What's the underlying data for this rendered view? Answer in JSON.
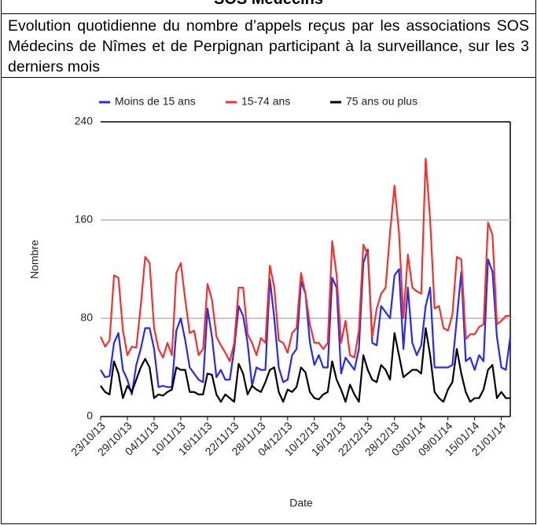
{
  "page_heading": "SOS Médecins",
  "chart_data": {
    "type": "line",
    "title": "Evolution quotidienne du nombre d’appels reçus par les associations SOS Médecins de Nîmes et de Perpignan participant à la surveillance, sur les 3 derniers mois",
    "xlabel": "Date",
    "ylabel": "Nombre",
    "categories": [
      "23/10/13",
      null,
      null,
      null,
      null,
      null,
      "29/10/13",
      null,
      null,
      null,
      null,
      null,
      "04/11/13",
      null,
      null,
      null,
      null,
      null,
      "10/11/13",
      null,
      null,
      null,
      null,
      null,
      "16/11/13",
      null,
      null,
      null,
      null,
      null,
      "22/11/13",
      null,
      null,
      null,
      null,
      null,
      "28/11/13",
      null,
      null,
      null,
      null,
      null,
      "04/12/13",
      null,
      null,
      null,
      null,
      null,
      "10/12/13",
      null,
      null,
      null,
      null,
      null,
      "16/12/13",
      null,
      null,
      null,
      null,
      null,
      "22/12/13",
      null,
      null,
      null,
      null,
      null,
      "28/12/13",
      null,
      null,
      null,
      null,
      null,
      "03/01/14",
      null,
      null,
      null,
      null,
      null,
      "09/01/14",
      null,
      null,
      null,
      null,
      null,
      "15/01/14",
      null,
      null,
      null,
      null,
      null,
      "21/01/14",
      null,
      null
    ],
    "series": [
      {
        "name": "Moins de 15 ans",
        "color": "#2a2ae8",
        "values": [
          38,
          32,
          33,
          60,
          68,
          38,
          30,
          18,
          42,
          55,
          72,
          72,
          55,
          24,
          25,
          24,
          24,
          70,
          80,
          62,
          40,
          35,
          30,
          28,
          88,
          65,
          32,
          38,
          30,
          30,
          55,
          90,
          82,
          60,
          25,
          40,
          38,
          38,
          112,
          80,
          40,
          28,
          30,
          50,
          55,
          110,
          100,
          60,
          42,
          50,
          40,
          40,
          113,
          105,
          35,
          48,
          43,
          38,
          55,
          125,
          136,
          60,
          58,
          90,
          85,
          80,
          115,
          120,
          55,
          105,
          60,
          50,
          58,
          90,
          105,
          40,
          40,
          40,
          40,
          42,
          80,
          118,
          45,
          48,
          38,
          50,
          45,
          128,
          118,
          65,
          40,
          38,
          65
        ]
      },
      {
        "name": "15-74 ans",
        "color": "#ee3333",
        "values": [
          65,
          57,
          62,
          115,
          113,
          70,
          50,
          57,
          56,
          90,
          130,
          125,
          72,
          55,
          48,
          60,
          50,
          117,
          125,
          95,
          68,
          70,
          50,
          55,
          108,
          95,
          65,
          58,
          52,
          45,
          60,
          105,
          105,
          67,
          60,
          50,
          64,
          60,
          123,
          105,
          62,
          60,
          52,
          68,
          72,
          117,
          100,
          75,
          60,
          60,
          55,
          60,
          143,
          115,
          60,
          78,
          50,
          48,
          70,
          140,
          132,
          65,
          88,
          100,
          105,
          150,
          188,
          150,
          80,
          132,
          105,
          102,
          100,
          210,
          160,
          88,
          90,
          72,
          70,
          83,
          130,
          128,
          63,
          67,
          67,
          73,
          75,
          158,
          148,
          75,
          78,
          82,
          82
        ]
      },
      {
        "name": "75 ans ou plus",
        "color": "#000000",
        "values": [
          25,
          20,
          18,
          45,
          35,
          15,
          25,
          20,
          30,
          40,
          47,
          40,
          15,
          18,
          17,
          20,
          22,
          40,
          38,
          38,
          20,
          20,
          18,
          18,
          35,
          34,
          18,
          12,
          18,
          15,
          12,
          43,
          35,
          18,
          25,
          22,
          20,
          28,
          38,
          40,
          20,
          12,
          22,
          20,
          24,
          40,
          36,
          20,
          15,
          14,
          18,
          20,
          45,
          30,
          22,
          12,
          26,
          18,
          12,
          50,
          38,
          30,
          28,
          42,
          38,
          30,
          68,
          50,
          32,
          35,
          38,
          38,
          35,
          72,
          50,
          20,
          15,
          12,
          22,
          28,
          55,
          35,
          20,
          12,
          15,
          15,
          22,
          38,
          42,
          15,
          20,
          15,
          15
        ]
      }
    ],
    "ylim": [
      0,
      240
    ],
    "yticks": [
      0,
      80,
      160,
      240
    ],
    "grid": true,
    "legend": "top"
  }
}
